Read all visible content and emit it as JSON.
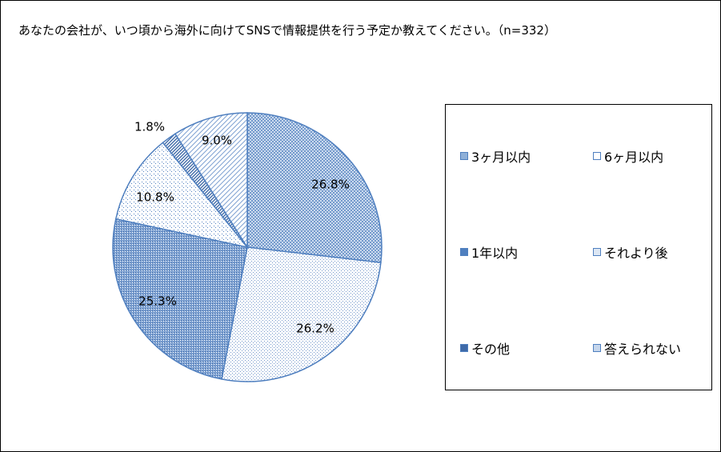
{
  "title": "あなたの会社が、いつ頃から海外に向けてSNSで情報提供を行う予定か教えてください。（n=332）",
  "chart_data": {
    "type": "pie",
    "categories": [
      "3ヶ月以内",
      "6ヶ月以内",
      "1年以内",
      "それより後",
      "その他",
      "答えられない"
    ],
    "values": [
      26.8,
      26.2,
      25.3,
      10.8,
      1.8,
      9.0
    ],
    "labels": [
      "26.8%",
      "26.2%",
      "25.3%",
      "10.8%",
      "1.8%",
      "9.0%"
    ],
    "legend_position": "right",
    "colors": {
      "edge": "#4f7fbf",
      "fill_dark": "#4f7fbf",
      "fill_mid": "#8fb0d8",
      "fill_light": "#c6d6ec"
    }
  }
}
